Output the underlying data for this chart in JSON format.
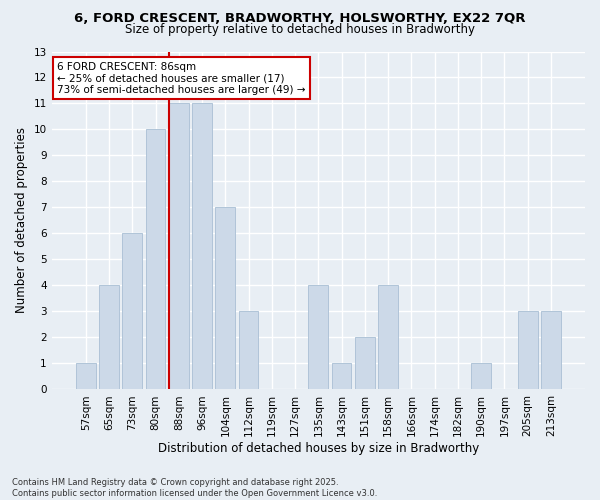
{
  "title": "6, FORD CRESCENT, BRADWORTHY, HOLSWORTHY, EX22 7QR",
  "subtitle": "Size of property relative to detached houses in Bradworthy",
  "xlabel": "Distribution of detached houses by size in Bradworthy",
  "ylabel": "Number of detached properties",
  "categories": [
    "57sqm",
    "65sqm",
    "73sqm",
    "80sqm",
    "88sqm",
    "96sqm",
    "104sqm",
    "112sqm",
    "119sqm",
    "127sqm",
    "135sqm",
    "143sqm",
    "151sqm",
    "158sqm",
    "166sqm",
    "174sqm",
    "182sqm",
    "190sqm",
    "197sqm",
    "205sqm",
    "213sqm"
  ],
  "values": [
    1,
    4,
    6,
    10,
    11,
    11,
    7,
    3,
    0,
    0,
    4,
    1,
    2,
    4,
    0,
    0,
    0,
    1,
    0,
    3,
    3
  ],
  "bar_color": "#ccd9e8",
  "bar_edgecolor": "#b0c4d8",
  "annotation_text": "6 FORD CRESCENT: 86sqm\n← 25% of detached houses are smaller (17)\n73% of semi-detached houses are larger (49) →",
  "annotation_box_color": "#ffffff",
  "annotation_box_edgecolor": "#cc0000",
  "vline_color": "#cc0000",
  "vline_x_index": 4,
  "ylim": [
    0,
    13
  ],
  "yticks": [
    0,
    1,
    2,
    3,
    4,
    5,
    6,
    7,
    8,
    9,
    10,
    11,
    12,
    13
  ],
  "footer_line1": "Contains HM Land Registry data © Crown copyright and database right 2025.",
  "footer_line2": "Contains public sector information licensed under the Open Government Licence v3.0.",
  "background_color": "#e8eef4",
  "grid_color": "#ffffff",
  "title_fontsize": 9.5,
  "subtitle_fontsize": 8.5,
  "xlabel_fontsize": 8.5,
  "ylabel_fontsize": 8.5,
  "tick_fontsize": 7.5,
  "footer_fontsize": 6.0
}
